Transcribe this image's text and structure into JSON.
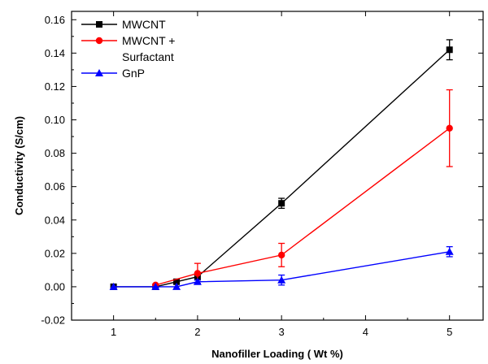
{
  "chart_data": {
    "type": "line",
    "title": "",
    "xlabel": "Nanofiller Loading  ( Wt %)",
    "ylabel": "Conductivity  (S/cm)",
    "xlim": [
      0.5,
      5.4
    ],
    "ylim": [
      -0.02,
      0.165
    ],
    "x_ticks": [
      1,
      2,
      3,
      4,
      5
    ],
    "x_tick_labels": [
      "1",
      "2",
      "3",
      "4",
      "5"
    ],
    "y_ticks": [
      -0.02,
      0.0,
      0.02,
      0.04,
      0.06,
      0.08,
      0.1,
      0.12,
      0.14,
      0.16
    ],
    "y_tick_labels": [
      "-0.02",
      "0.00",
      "0.02",
      "0.04",
      "0.06",
      "0.08",
      "0.10",
      "0.12",
      "0.14",
      "0.16"
    ],
    "grid": false,
    "legend_position": "top-left",
    "series": [
      {
        "name": "MWCNT",
        "legend_lines": [
          "MWCNT"
        ],
        "color": "#000000",
        "marker": "square",
        "x": [
          1,
          1.5,
          1.75,
          2,
          3,
          5
        ],
        "y": [
          0.0,
          0.0,
          0.003,
          0.006,
          0.05,
          0.142
        ],
        "err": [
          0,
          0,
          0.001,
          0.002,
          0.003,
          0.006
        ]
      },
      {
        "name": "MWCNT + Surfactant",
        "legend_lines": [
          "MWCNT +",
          "Surfactant"
        ],
        "color": "#ff0000",
        "marker": "circle",
        "x": [
          1.5,
          2,
          3,
          5
        ],
        "y": [
          0.001,
          0.008,
          0.019,
          0.095
        ],
        "err": [
          0,
          0.006,
          0.007,
          0.023
        ]
      },
      {
        "name": "GnP",
        "legend_lines": [
          "GnP"
        ],
        "color": "#0000ff",
        "marker": "triangle",
        "x": [
          1,
          1.5,
          1.75,
          2,
          3,
          5
        ],
        "y": [
          0.0,
          0.0,
          0.0,
          0.003,
          0.004,
          0.021
        ],
        "err": [
          0,
          0,
          0,
          0.001,
          0.003,
          0.003
        ]
      }
    ]
  }
}
